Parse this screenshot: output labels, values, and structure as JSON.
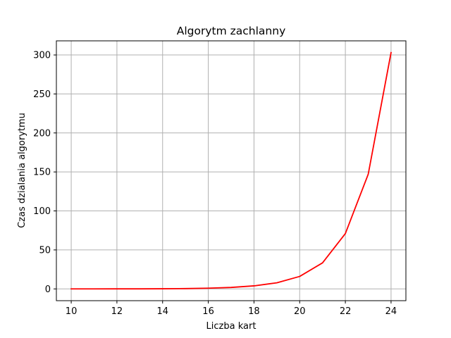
{
  "chart_data": {
    "type": "line",
    "title": "Algorytm zachlanny",
    "xlabel": "Liczba kart",
    "ylabel": "Czas dzialania algorytmu",
    "xlim": [
      9.35,
      24.65
    ],
    "ylim": [
      -15.1,
      318.1
    ],
    "xticks": [
      10,
      12,
      14,
      16,
      18,
      20,
      22,
      24
    ],
    "yticks": [
      0,
      50,
      100,
      150,
      200,
      250,
      300
    ],
    "grid": true,
    "series": [
      {
        "color": "#ff0000",
        "x": [
          10,
          11,
          12,
          13,
          14,
          15,
          16,
          17,
          18,
          19,
          20,
          21,
          22,
          23,
          24
        ],
        "y": [
          0.0,
          0.0,
          0.1,
          0.1,
          0.2,
          0.4,
          0.9,
          1.9,
          3.9,
          7.8,
          16.0,
          33.4,
          71.0,
          147.0,
          303.0
        ]
      }
    ]
  }
}
